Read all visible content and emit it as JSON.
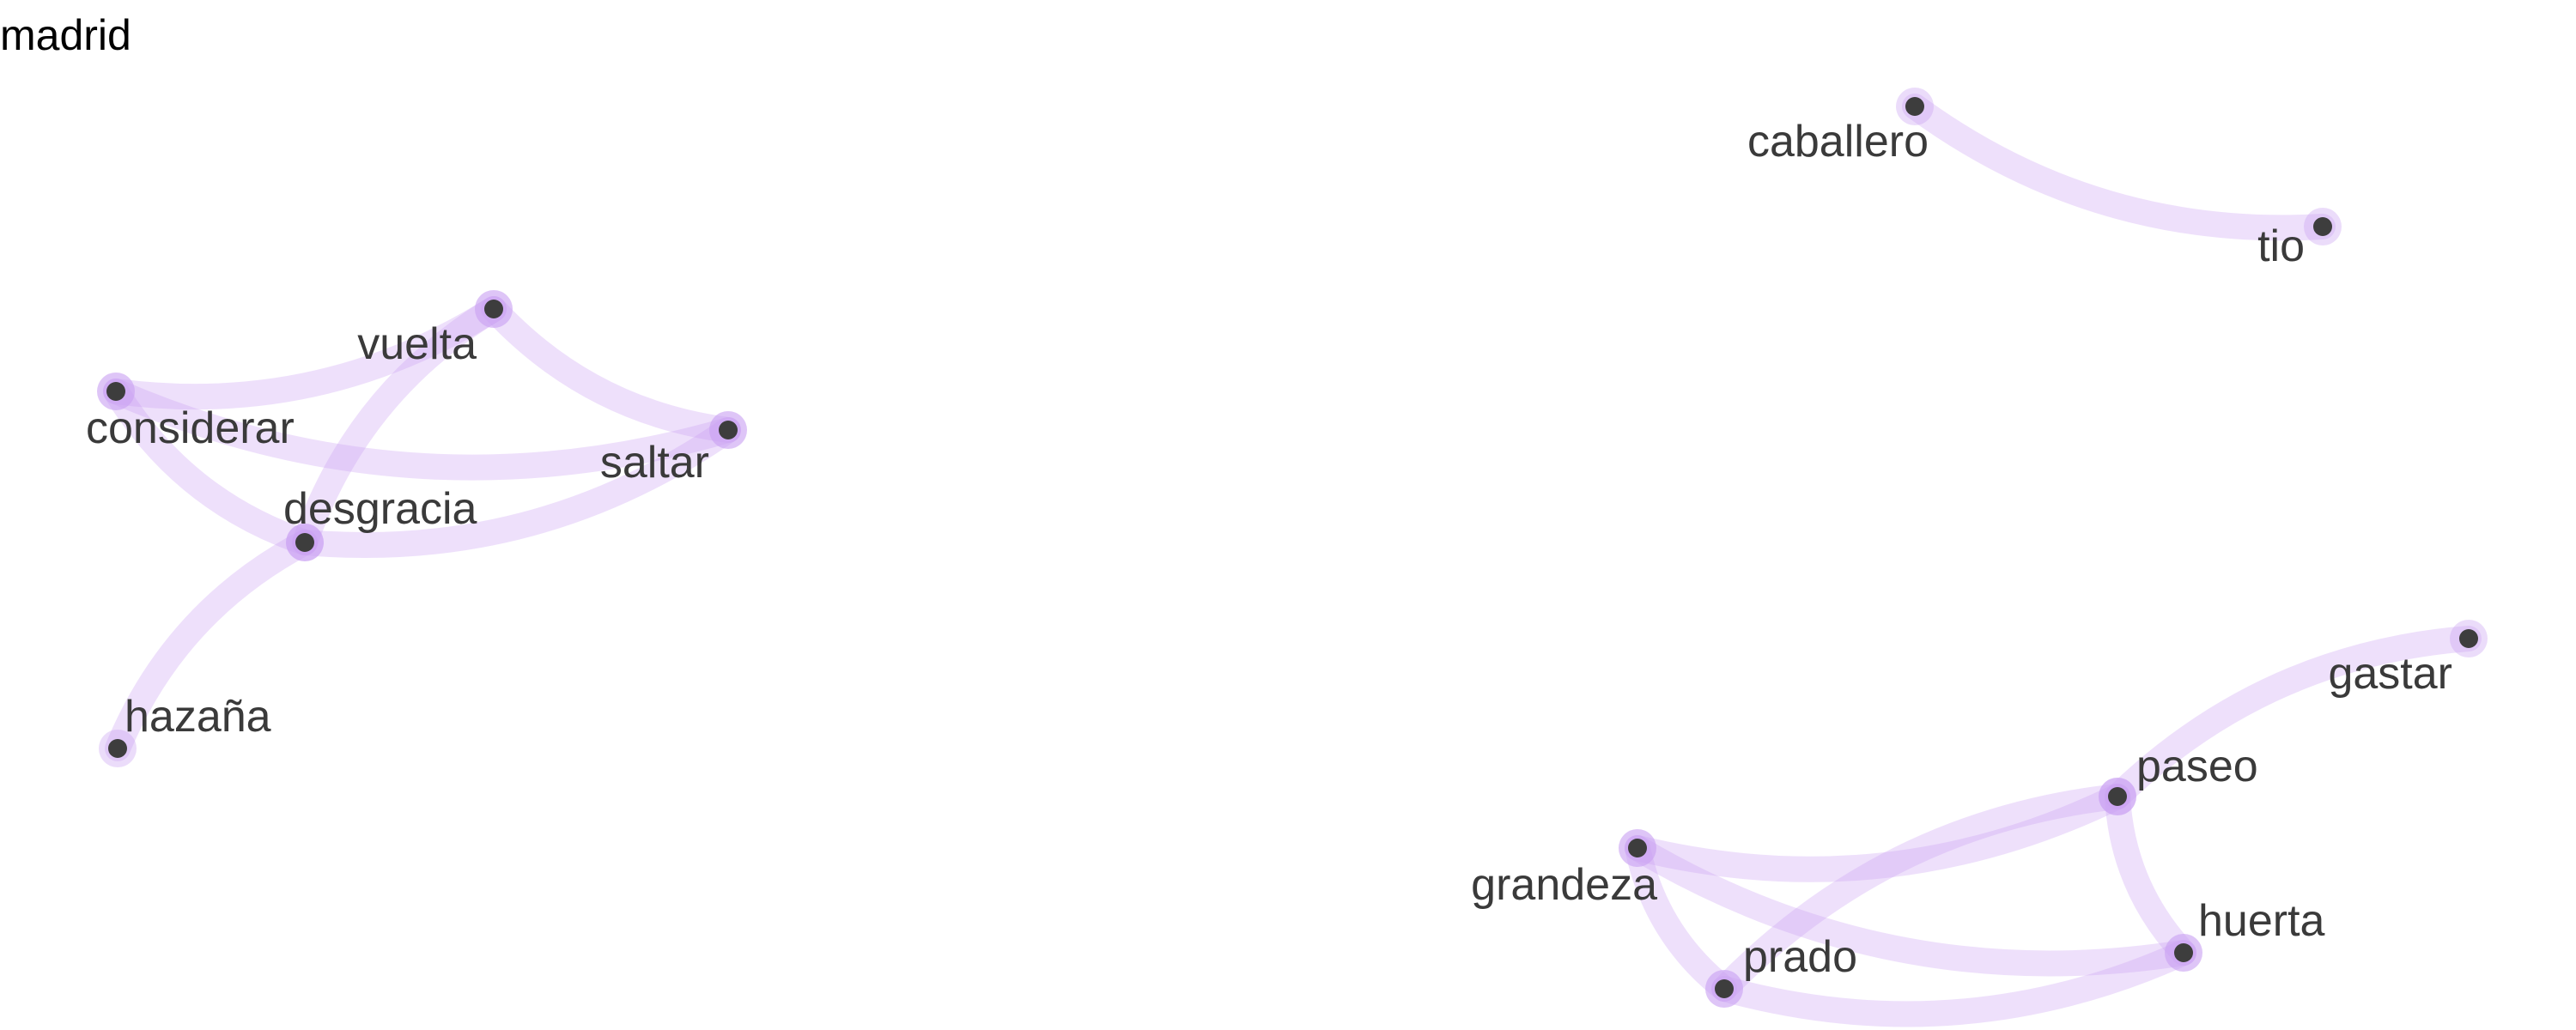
{
  "title": "madrid",
  "colors": {
    "edge": "#c9a0f2",
    "node": "#3d3d3d",
    "halo": "#c9a0f2",
    "label": "#3a3a3a"
  },
  "nodes": [
    {
      "id": "caballero",
      "label": "caballero"
    },
    {
      "id": "tio",
      "label": "tio"
    },
    {
      "id": "vuelta",
      "label": "vuelta"
    },
    {
      "id": "considerar",
      "label": "considerar"
    },
    {
      "id": "saltar",
      "label": "saltar"
    },
    {
      "id": "desgracia",
      "label": "desgracia"
    },
    {
      "id": "hazana",
      "label": "hazaña"
    },
    {
      "id": "gastar",
      "label": "gastar"
    },
    {
      "id": "paseo",
      "label": "paseo"
    },
    {
      "id": "grandeza",
      "label": "grandeza"
    },
    {
      "id": "huerta",
      "label": "huerta"
    },
    {
      "id": "prado",
      "label": "prado"
    }
  ],
  "edges": [
    {
      "source": "caballero",
      "target": "tio"
    },
    {
      "source": "considerar",
      "target": "vuelta"
    },
    {
      "source": "vuelta",
      "target": "saltar"
    },
    {
      "source": "vuelta",
      "target": "desgracia"
    },
    {
      "source": "considerar",
      "target": "saltar"
    },
    {
      "source": "considerar",
      "target": "desgracia"
    },
    {
      "source": "desgracia",
      "target": "saltar"
    },
    {
      "source": "desgracia",
      "target": "hazana"
    },
    {
      "source": "gastar",
      "target": "paseo"
    },
    {
      "source": "grandeza",
      "target": "paseo"
    },
    {
      "source": "paseo",
      "target": "prado"
    },
    {
      "source": "paseo",
      "target": "huerta"
    },
    {
      "source": "grandeza",
      "target": "huerta"
    },
    {
      "source": "grandeza",
      "target": "prado"
    },
    {
      "source": "prado",
      "target": "huerta"
    }
  ]
}
